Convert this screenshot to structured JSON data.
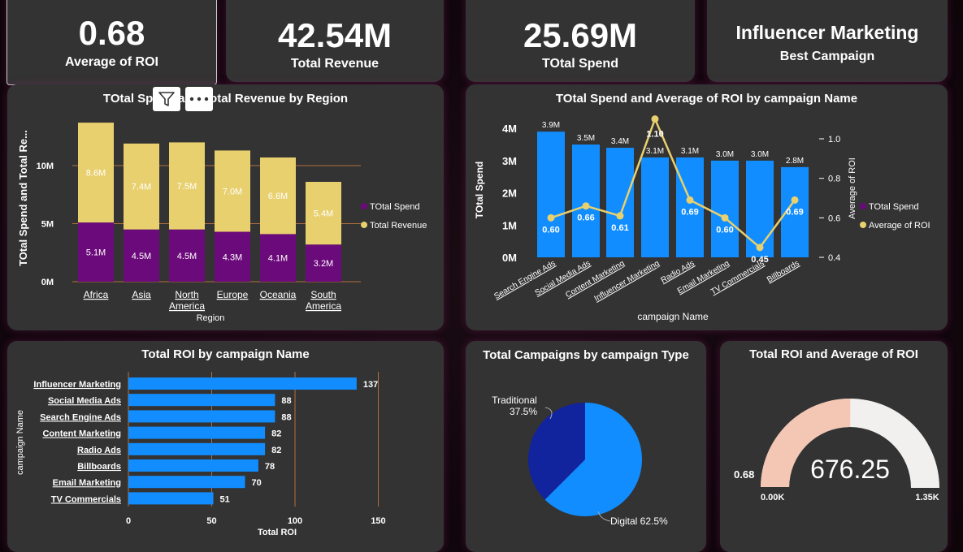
{
  "kpis": {
    "avg_roi": {
      "value": "0.68",
      "label": "Average of ROI"
    },
    "total_revenue": {
      "value": "42.54M",
      "label": "Total Revenue"
    },
    "total_spend": {
      "value": "25.69M",
      "label": "TOtal Spend"
    },
    "best_campaign": {
      "value": "Influencer Marketing",
      "label": "Best Campaign"
    }
  },
  "charts": {
    "region": {
      "title": "TOtal Spend and Total Revenue by Region",
      "ylabel": "TOtal Spend and Total Re...",
      "xlabel": "Region",
      "yticks": [
        "0M",
        "5M",
        "10M"
      ],
      "legend": [
        "TOtal Spend",
        "Total Revenue"
      ],
      "categories": [
        "Africa",
        "Asia",
        "North America",
        "Europe",
        "Oceania",
        "South America"
      ],
      "spend_labels": [
        "5.1M",
        "4.5M",
        "4.5M",
        "4.3M",
        "4.1M",
        "3.2M"
      ],
      "revenue_labels": [
        "8.6M",
        "7.4M",
        "7.5M",
        "7.0M",
        "6.6M",
        "5.4M"
      ]
    },
    "campaign_spend_roi": {
      "title": "TOtal Spend and Average of ROI by campaign Name",
      "ylabel": "TOtal Spend",
      "y2label": "Average of ROI",
      "xlabel": "campaign Name",
      "yticks": [
        "0M",
        "1M",
        "2M",
        "3M",
        "4M"
      ],
      "y2ticks": [
        "0.4",
        "0.6",
        "0.8",
        "1.0"
      ],
      "legend": [
        "TOtal Spend",
        "Average of ROI"
      ],
      "categories": [
        "Search Engine Ads",
        "Social Media Ads",
        "Content Marketing",
        "Influencer Marketing",
        "Radio Ads",
        "Email Marketing",
        "TV Commercials",
        "Billboards"
      ],
      "spend_labels": [
        "3.9M",
        "3.5M",
        "3.4M",
        "3.1M",
        "3.1M",
        "3.0M",
        "3.0M",
        "2.8M"
      ],
      "roi_labels": [
        "0.60",
        "0.66",
        "0.61",
        "1.10",
        "0.69",
        "0.60",
        "0.45",
        "0.69"
      ]
    },
    "total_roi": {
      "title": "Total ROI by campaign Name",
      "ylabel": "campaign Name",
      "xlabel": "Total ROI",
      "xticks": [
        "0",
        "50",
        "100",
        "150"
      ],
      "categories": [
        "Influencer Marketing",
        "Social Media Ads",
        "Search Engine Ads",
        "Content Marketing",
        "Radio Ads",
        "Billboards",
        "Email Marketing",
        "TV Commercials"
      ],
      "value_labels": [
        "137",
        "88",
        "88",
        "82",
        "82",
        "78",
        "70",
        "51"
      ]
    },
    "campaign_type": {
      "title": "Total Campaigns by campaign Type",
      "labels": [
        "Traditional",
        "37.5%",
        "Digital 62.5%"
      ]
    },
    "gauge": {
      "title": "Total ROI and Average of ROI",
      "value": "676.25",
      "target_label": "0.68",
      "min_label": "0.00K",
      "max_label": "1.35K"
    }
  },
  "chart_data": [
    {
      "type": "bar",
      "title": "TOtal Spend and Total Revenue by Region",
      "stacked": true,
      "xlabel": "Region",
      "ylabel": "TOtal Spend and Total Re...",
      "categories": [
        "Africa",
        "Asia",
        "North America",
        "Europe",
        "Oceania",
        "South America"
      ],
      "series": [
        {
          "name": "TOtal Spend",
          "values": [
            5.1,
            4.5,
            4.5,
            4.3,
            4.1,
            3.2
          ],
          "color": "#6b0a7a"
        },
        {
          "name": "Total Revenue",
          "values": [
            8.6,
            7.4,
            7.5,
            7.0,
            6.6,
            5.4
          ],
          "color": "#e8d06e"
        }
      ],
      "ylim": [
        0,
        14.5
      ],
      "unit": "M",
      "legend": "right"
    },
    {
      "type": "bar",
      "title": "TOtal Spend and Average of ROI by campaign Name",
      "xlabel": "campaign Name",
      "ylabel": "TOtal Spend",
      "y2label": "Average of ROI",
      "categories": [
        "Search Engine Ads",
        "Social Media Ads",
        "Content Marketing",
        "Influencer Marketing",
        "Radio Ads",
        "Email Marketing",
        "TV Commercials",
        "Billboards"
      ],
      "series": [
        {
          "name": "TOtal Spend",
          "type": "bar",
          "values": [
            3.9,
            3.5,
            3.4,
            3.1,
            3.1,
            3.0,
            3.0,
            2.8
          ],
          "color": "#118dff"
        },
        {
          "name": "Average of ROI",
          "type": "line",
          "axis": "right",
          "values": [
            0.6,
            0.66,
            0.61,
            1.1,
            0.69,
            0.6,
            0.45,
            0.69
          ],
          "color": "#e8d06e"
        }
      ],
      "ylim": [
        0,
        4
      ],
      "y2lim": [
        0.4,
        1.1
      ],
      "legend": "right"
    },
    {
      "type": "bar",
      "orientation": "horizontal",
      "title": "Total ROI by campaign Name",
      "xlabel": "Total ROI",
      "ylabel": "campaign Name",
      "categories": [
        "Influencer Marketing",
        "Social Media Ads",
        "Search Engine Ads",
        "Content Marketing",
        "Radio Ads",
        "Billboards",
        "Email Marketing",
        "TV Commercials"
      ],
      "values": [
        137,
        88,
        88,
        82,
        82,
        78,
        70,
        51
      ],
      "xlim": [
        0,
        150
      ]
    },
    {
      "type": "pie",
      "title": "Total Campaigns by campaign Type",
      "categories": [
        "Traditional",
        "Digital"
      ],
      "values": [
        37.5,
        62.5
      ],
      "colors": [
        "#12239e",
        "#118dff"
      ]
    },
    {
      "type": "gauge",
      "title": "Total ROI and Average of ROI",
      "value": 676.25,
      "min": 0,
      "max": 1350,
      "target": 0.68
    }
  ],
  "icons": [
    "filter-icon",
    "more-options-icon"
  ],
  "colors": {
    "spend": "#6b0a7a",
    "revenue": "#e8d06e",
    "blue": "#118dff",
    "dark_blue": "#12239e",
    "gauge_fill": "#f4c6b4",
    "gauge_track": "#f2f0ee"
  }
}
